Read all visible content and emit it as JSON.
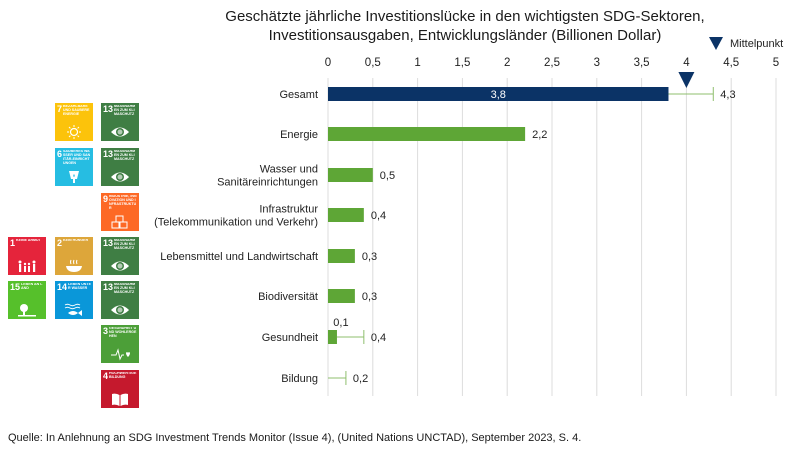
{
  "chart_data": {
    "type": "bar",
    "orientation": "horizontal",
    "title": "Geschätzte jährliche Investitionslücke in den wichtigsten SDG-Sektoren,",
    "subtitle": "Investitionsausgaben, Entwicklungsländer (Billionen Dollar)",
    "categories": [
      "Gesamt",
      "Energie",
      "Wasser und\nSanitäreinrichtungen",
      "Infrastruktur\n(Telekommunikation und Verkehr)",
      "Lebensmittel und Landwirtschaft",
      "Biodiversität",
      "Gesundheit",
      "Bildung"
    ],
    "values": [
      3.8,
      2.2,
      0.5,
      0.4,
      0.3,
      0.3,
      0.1,
      0
    ],
    "value_labels": [
      "3,8",
      "2,2",
      "0,5",
      "0,4",
      "0,3",
      "0,3",
      "0,1",
      ""
    ],
    "upper": [
      4.3,
      null,
      null,
      null,
      null,
      null,
      0.4,
      0.2
    ],
    "upper_labels": [
      "4,3",
      "",
      "",
      "",
      "",
      "",
      "0,4",
      "0,2"
    ],
    "midpoint": 4.0,
    "legend": "Mittelpunkt",
    "legend_position": "top-right",
    "xlim": [
      0,
      5
    ],
    "xticks": [
      0,
      0.5,
      1,
      1.5,
      2,
      2.5,
      3,
      3.5,
      4,
      4.5,
      5
    ],
    "xtick_labels": [
      "0",
      "0,5",
      "1",
      "1,5",
      "2",
      "2,5",
      "3",
      "3,5",
      "4",
      "4,5",
      "5"
    ],
    "grid": true,
    "colors": {
      "total": "#0b3366",
      "sector": "#5ea636",
      "whisker": "#8fbf6e",
      "grid": "#dcdcdc"
    }
  },
  "sdg_icons": [
    {
      "num": "7",
      "label": "BEZAHLBARE UND SAUBERE ENERGIE",
      "color": "#fcc30b",
      "icon": "sun-icon",
      "row": 1,
      "col": 2
    },
    {
      "num": "13",
      "label": "MASSNAHMEN ZUM KLIMASCHUTZ",
      "color": "#3f7e44",
      "icon": "eye-globe-icon",
      "row": 1,
      "col": 3
    },
    {
      "num": "6",
      "label": "SAUBERES WASSER UND SANITÄR-EINRICHTUNGEN",
      "color": "#26bde2",
      "icon": "water-icon",
      "row": 2,
      "col": 2
    },
    {
      "num": "13",
      "label": "MASSNAHMEN ZUM KLIMASCHUTZ",
      "color": "#3f7e44",
      "icon": "eye-globe-icon",
      "row": 2,
      "col": 3
    },
    {
      "num": "9",
      "label": "INDUSTRIE, INNOVATION UND INFRASTRUKTUR",
      "color": "#fd6925",
      "icon": "cubes-icon",
      "row": 3,
      "col": 3
    },
    {
      "num": "1",
      "label": "KEINE ARMUT",
      "color": "#e5243b",
      "icon": "family-icon",
      "row": 4,
      "col": 1
    },
    {
      "num": "2",
      "label": "KEIN HUNGER",
      "color": "#dda63a",
      "icon": "bowl-icon",
      "row": 4,
      "col": 2
    },
    {
      "num": "13",
      "label": "MASSNAHMEN ZUM KLIMASCHUTZ",
      "color": "#3f7e44",
      "icon": "eye-globe-icon",
      "row": 4,
      "col": 3
    },
    {
      "num": "15",
      "label": "LEBEN AN LAND",
      "color": "#56c02b",
      "icon": "tree-icon",
      "row": 5,
      "col": 1
    },
    {
      "num": "14",
      "label": "LEBEN UNTER WASSER",
      "color": "#0a97d9",
      "icon": "fish-icon",
      "row": 5,
      "col": 2
    },
    {
      "num": "13",
      "label": "MASSNAHMEN ZUM KLIMASCHUTZ",
      "color": "#3f7e44",
      "icon": "eye-globe-icon",
      "row": 5,
      "col": 3
    },
    {
      "num": "3",
      "label": "GESUNDHEIT UND WOHLERGEHEN",
      "color": "#4c9f38",
      "icon": "heartbeat-icon",
      "row": 6,
      "col": 3
    },
    {
      "num": "4",
      "label": "HOCHWERTIGE BILDUNG",
      "color": "#c5192d",
      "icon": "book-icon",
      "row": 7,
      "col": 3
    }
  ],
  "source": "Quelle: In Anlehnung an SDG Investment Trends Monitor (Issue 4), (United Nations UNCTAD), September 2023, S. 4."
}
